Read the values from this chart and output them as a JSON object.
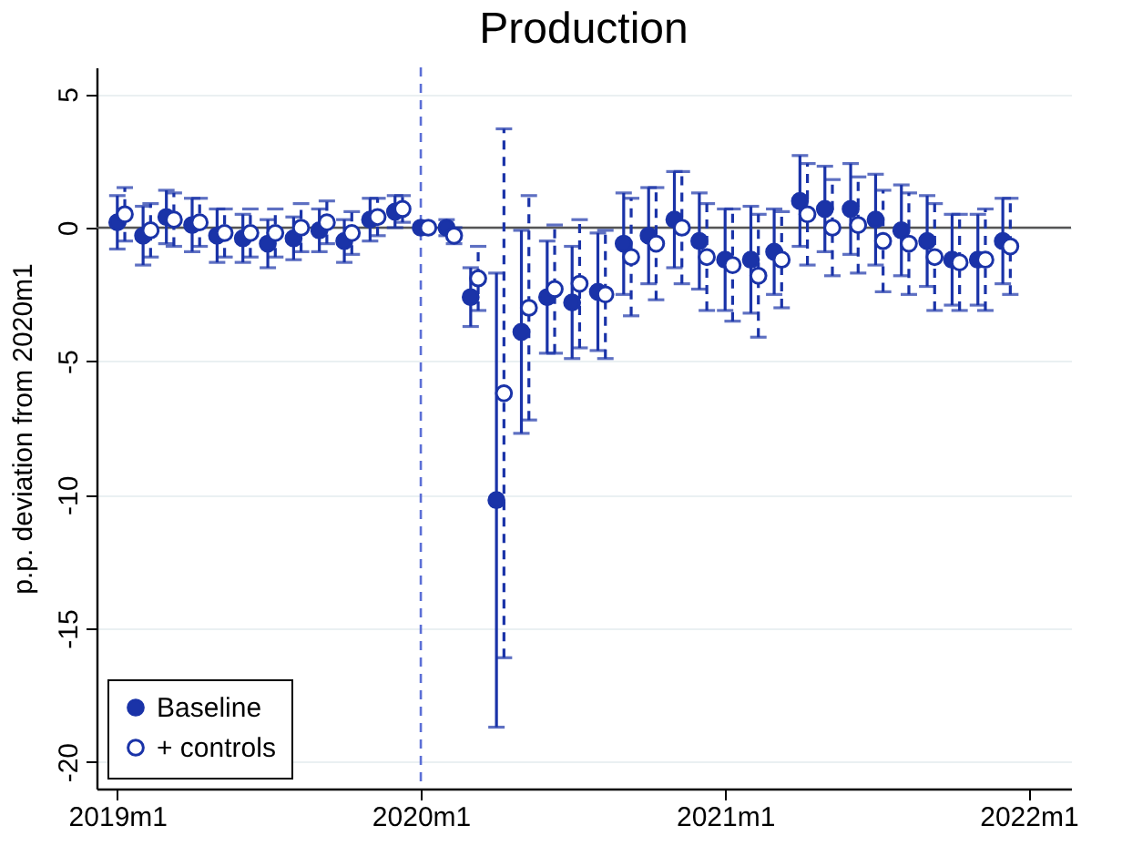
{
  "chart_data": {
    "type": "scatter",
    "title": "Production",
    "ylabel": "p.p. deviation from 2020m1",
    "xlim": [
      "2018-12-07",
      "2022-02-21"
    ],
    "xticks": [
      {
        "value": "2019-01",
        "label": "2019m1"
      },
      {
        "value": "2020-01",
        "label": "2020m1"
      },
      {
        "value": "2021-01",
        "label": "2021m1"
      },
      {
        "value": "2022-01",
        "label": "2022m1"
      }
    ],
    "ylim": [
      -21,
      6
    ],
    "yticks": [
      5,
      0,
      -5,
      -10,
      -15,
      -20
    ],
    "grid": "y",
    "legend": "bottom left",
    "marker": "circle",
    "ref_lines": [
      {
        "axis": "y",
        "value": 0,
        "color": "#555555"
      },
      {
        "axis": "x",
        "value": "2020-01",
        "color": "#5b6fd6",
        "line_style": "dashed"
      }
    ],
    "series": [
      {
        "name": "Baseline",
        "color": "#1a33a8",
        "line_style": "solid",
        "x": [
          "2019-01",
          "2019-02",
          "2019-03",
          "2019-04",
          "2019-05",
          "2019-06",
          "2019-07",
          "2019-08",
          "2019-09",
          "2019-10",
          "2019-11",
          "2019-12",
          "2020-01",
          "2020-02",
          "2020-03",
          "2020-04",
          "2020-05",
          "2020-06",
          "2020-07",
          "2020-08",
          "2020-09",
          "2020-10",
          "2020-11",
          "2020-12",
          "2021-01",
          "2021-02",
          "2021-03",
          "2021-04",
          "2021-05",
          "2021-06",
          "2021-07",
          "2021-08",
          "2021-09",
          "2021-10",
          "2021-11",
          "2021-12"
        ],
        "values": [
          0.2,
          -0.3,
          0.4,
          0.1,
          -0.3,
          -0.4,
          -0.6,
          -0.4,
          -0.1,
          -0.5,
          0.3,
          0.6,
          0,
          0.0,
          -2.6,
          -10.2,
          -3.9,
          -2.6,
          -2.8,
          -2.4,
          -0.6,
          -0.3,
          0.3,
          -0.5,
          -1.2,
          -1.2,
          -0.9,
          1.0,
          0.7,
          0.7,
          0.3,
          -0.1,
          -0.5,
          -1.2,
          -1.2,
          -0.5
        ],
        "errors": [
          1.0,
          1.1,
          1.0,
          1.0,
          1.0,
          0.9,
          0.9,
          0.8,
          0.8,
          0.8,
          0.8,
          0.6,
          null,
          0.3,
          1.1,
          8.5,
          3.8,
          2.1,
          2.1,
          2.2,
          1.9,
          1.8,
          1.8,
          1.8,
          1.9,
          2.0,
          1.6,
          1.7,
          1.6,
          1.7,
          1.7,
          1.7,
          1.7,
          1.7,
          1.7,
          1.6
        ]
      },
      {
        "name": "+ controls",
        "color": "#1a33a8",
        "line_style": "dashed",
        "x": [
          "2019-01-10",
          "2019-02-10",
          "2019-03-10",
          "2019-04-10",
          "2019-05-10",
          "2019-06-10",
          "2019-07-10",
          "2019-08-10",
          "2019-09-10",
          "2019-10-10",
          "2019-11-10",
          "2019-12-10",
          "2020-01-10",
          "2020-02-10",
          "2020-03-10",
          "2020-04-10",
          "2020-05-10",
          "2020-06-10",
          "2020-07-10",
          "2020-08-10",
          "2020-09-10",
          "2020-10-10",
          "2020-11-10",
          "2020-12-10",
          "2021-01-10",
          "2021-02-10",
          "2021-03-10",
          "2021-04-10",
          "2021-05-10",
          "2021-06-10",
          "2021-07-10",
          "2021-08-10",
          "2021-09-10",
          "2021-10-10",
          "2021-11-10",
          "2021-12-10"
        ],
        "values": [
          0.5,
          -0.1,
          0.3,
          0.2,
          -0.2,
          -0.2,
          -0.2,
          0.0,
          0.2,
          -0.2,
          0.4,
          0.7,
          0,
          -0.3,
          -1.9,
          -6.2,
          -3.0,
          -2.3,
          -2.1,
          -2.5,
          -1.1,
          -0.6,
          0.0,
          -1.1,
          -1.4,
          -1.8,
          -1.2,
          0.5,
          0.0,
          0.1,
          -0.5,
          -0.6,
          -1.1,
          -1.3,
          -1.2,
          -0.7
        ],
        "errors": [
          1.0,
          1.0,
          1.0,
          0.9,
          0.9,
          0.9,
          0.9,
          0.9,
          0.8,
          0.8,
          0.7,
          0.5,
          null,
          0.3,
          1.2,
          9.9,
          4.2,
          2.4,
          2.4,
          2.4,
          2.2,
          2.1,
          2.1,
          2.0,
          2.1,
          2.3,
          1.8,
          1.9,
          1.8,
          1.8,
          1.9,
          1.9,
          2.0,
          1.8,
          1.9,
          1.8
        ]
      }
    ]
  }
}
